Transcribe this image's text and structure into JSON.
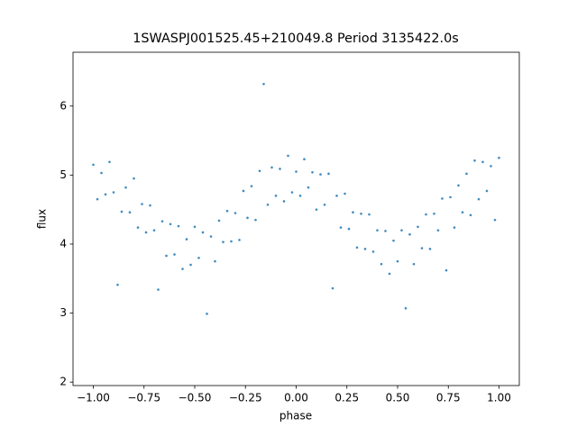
{
  "chart_data": {
    "type": "scatter",
    "title": "1SWASPJ001525.45+210049.8 Period 3135422.0s",
    "x_label": "phase",
    "y_label": "flux",
    "color": "#1f77b4",
    "xlim": [
      -1.1,
      1.1
    ],
    "ylim": [
      1.95,
      6.78
    ],
    "xticks": [
      {
        "value": -1,
        "label": "−1.00"
      },
      {
        "value": -0.75,
        "label": "−0.75"
      },
      {
        "value": -0.5,
        "label": "−0.50"
      },
      {
        "value": -0.25,
        "label": "−0.25"
      },
      {
        "value": 0,
        "label": "0.00"
      },
      {
        "value": 0.25,
        "label": "0.25"
      },
      {
        "value": 0.5,
        "label": "0.50"
      },
      {
        "value": 0.75,
        "label": "0.75"
      },
      {
        "value": 1,
        "label": "1.00"
      }
    ],
    "yticks": [
      2,
      3,
      4,
      5,
      6
    ],
    "x": [
      -1,
      -0.98,
      -0.96,
      -0.94,
      -0.92,
      -0.9,
      -0.88,
      -0.86,
      -0.84,
      -0.82,
      -0.8,
      -0.78,
      -0.76,
      -0.74,
      -0.72,
      -0.7,
      -0.68,
      -0.66,
      -0.64,
      -0.62,
      -0.6,
      -0.58,
      -0.56,
      -0.54,
      -0.52,
      -0.5,
      -0.48,
      -0.46,
      -0.44,
      -0.42,
      -0.4,
      -0.38,
      -0.36,
      -0.34,
      -0.32,
      -0.3,
      -0.28,
      -0.26,
      -0.24,
      -0.22,
      -0.2,
      -0.18,
      -0.16,
      -0.14,
      -0.12,
      -0.1,
      -0.08,
      -0.06,
      -0.04,
      -0.02,
      0,
      0.02,
      0.04,
      0.06,
      0.08,
      0.1,
      0.12,
      0.14,
      0.16,
      0.18,
      0.2,
      0.22,
      0.24,
      0.26,
      0.28,
      0.3,
      0.32,
      0.34,
      0.36,
      0.38,
      0.4,
      0.42,
      0.44,
      0.46,
      0.48,
      0.5,
      0.52,
      0.54,
      0.56,
      0.58,
      0.6,
      0.62,
      0.64,
      0.66,
      0.68,
      0.7,
      0.72,
      0.74,
      0.76,
      0.78,
      0.8,
      0.82,
      0.84,
      0.86,
      0.88,
      0.9,
      0.92,
      0.94,
      0.96,
      0.98,
      1
    ],
    "values": [
      5.15,
      4.65,
      5.03,
      4.72,
      5.19,
      4.75,
      3.41,
      4.47,
      4.82,
      4.46,
      4.95,
      4.24,
      4.58,
      4.17,
      4.56,
      4.2,
      3.34,
      4.33,
      3.83,
      4.29,
      3.85,
      4.26,
      3.64,
      4.07,
      3.7,
      4.25,
      3.8,
      4.17,
      2.99,
      4.11,
      3.75,
      4.34,
      4.03,
      4.48,
      4.04,
      4.45,
      4.06,
      4.77,
      4.38,
      4.84,
      4.35,
      5.06,
      6.32,
      4.57,
      5.11,
      4.7,
      5.09,
      4.62,
      5.28,
      4.75,
      5.05,
      4.7,
      5.23,
      4.82,
      5.04,
      4.5,
      5.01,
      4.57,
      5.02,
      3.36,
      4.7,
      4.24,
      4.73,
      4.22,
      4.46,
      3.95,
      4.44,
      3.93,
      4.43,
      3.89,
      4.2,
      3.71,
      4.19,
      3.57,
      4.05,
      3.75,
      4.2,
      3.07,
      4.14,
      3.71,
      4.25,
      3.94,
      4.43,
      3.93,
      4.44,
      4.2,
      4.66,
      3.62,
      4.68,
      4.24,
      4.85,
      4.46,
      5.02,
      4.42,
      5.21,
      4.65,
      5.19,
      4.77,
      5.13,
      4.35,
      5.25
    ]
  }
}
